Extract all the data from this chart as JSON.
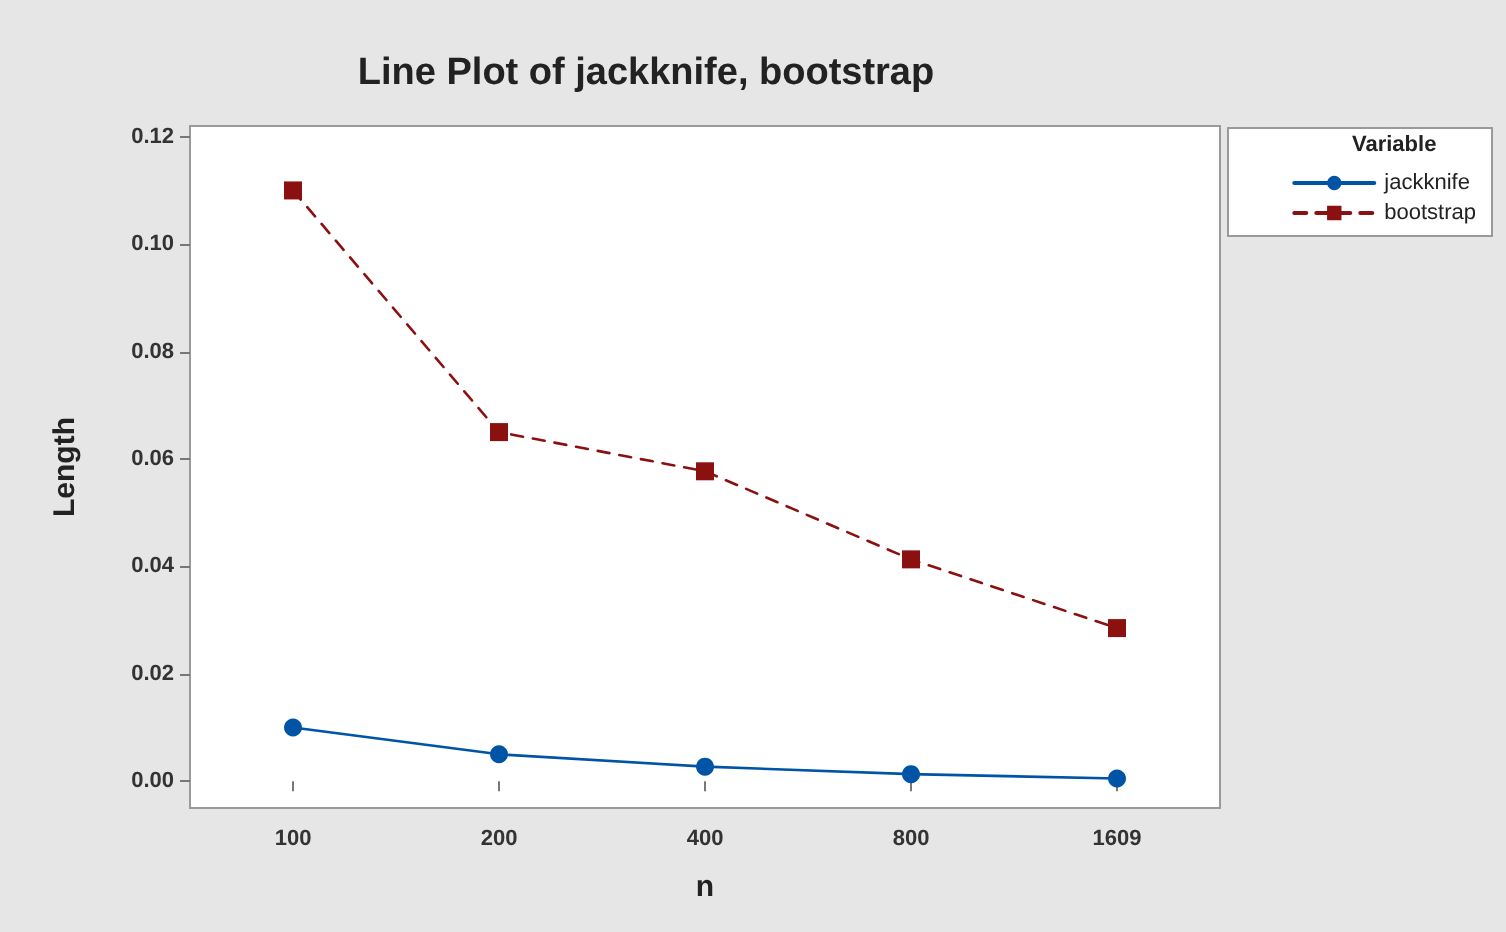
{
  "chart_data": {
    "type": "line",
    "title": "Line Plot of jackknife, bootstrap",
    "xlabel": "n",
    "ylabel": "Length",
    "legend_title": "Variable",
    "categories": [
      "100",
      "200",
      "400",
      "800",
      "1609"
    ],
    "series": [
      {
        "name": "jackknife",
        "color": "#0054a6",
        "values": [
          0.01,
          0.005,
          0.0027,
          0.0013,
          0.0005
        ],
        "marker": "circle",
        "line_style": "solid"
      },
      {
        "name": "bootstrap",
        "color": "#8b1010",
        "values": [
          0.11,
          0.065,
          0.0577,
          0.0413,
          0.0285
        ],
        "marker": "square",
        "line_style": "dashed"
      }
    ],
    "ylim": [
      -0.005,
      0.122
    ],
    "yticks": [
      {
        "value": 0,
        "label": "0.00"
      },
      {
        "value": 0.02,
        "label": "0.02"
      },
      {
        "value": 0.04,
        "label": "0.04"
      },
      {
        "value": 0.06,
        "label": "0.06"
      },
      {
        "value": 0.08,
        "label": "0.08"
      },
      {
        "value": 0.1,
        "label": "0.10"
      },
      {
        "value": 0.12,
        "label": "0.12"
      }
    ],
    "grid": false,
    "legend": "top right"
  }
}
